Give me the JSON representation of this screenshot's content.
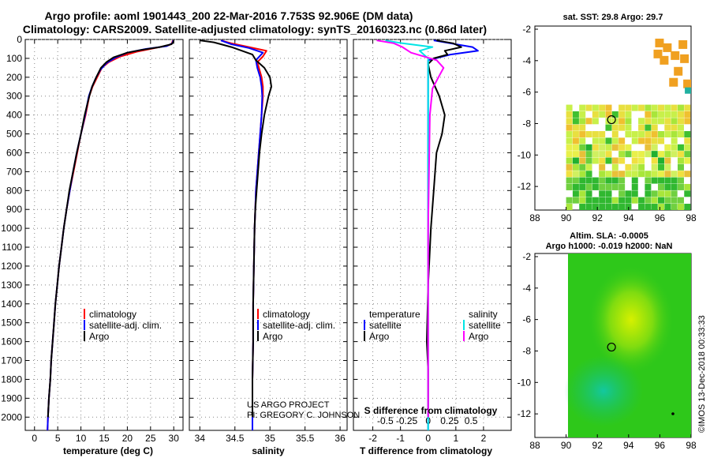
{
  "header": {
    "title_line1": "Argo profile: aoml 1901443_200 22-Mar-2016 7.753S 92.906E (DM data)",
    "title_line2": "Climatology: CARS2009. Satellite-adjusted climatology: synTS_20160323.nc (0.86d later)"
  },
  "credits": {
    "project": "US ARGO PROJECT",
    "pi": "PI: GREGORY C. JOHNSON",
    "stamp": "©IMOS 13-Dec-2018 00:33:33"
  },
  "colors": {
    "climatology": "#ff0000",
    "satellite": "#0000ff",
    "argo": "#000000",
    "sal_satellite": "#00e5e5",
    "sal_argo": "#ff00ff"
  },
  "chart_data": [
    {
      "id": "temperature",
      "type": "line",
      "xlabel": "temperature (deg C)",
      "xlim": [
        -2,
        32
      ],
      "xticks": [
        0,
        5,
        10,
        15,
        20,
        25,
        30
      ],
      "ylim": [
        2070,
        0
      ],
      "yticks": [
        0,
        100,
        200,
        300,
        400,
        500,
        600,
        700,
        800,
        900,
        1000,
        1100,
        1200,
        1300,
        1400,
        1500,
        1600,
        1700,
        1800,
        1900,
        2000
      ],
      "legend": [
        "climatology",
        "satellite-adj. clim.",
        "Argo"
      ],
      "series": [
        {
          "name": "climatology",
          "color": "#ff0000",
          "points": [
            [
              29.8,
              5
            ],
            [
              29.6,
              20
            ],
            [
              29,
              30
            ],
            [
              26,
              45
            ],
            [
              22,
              65
            ],
            [
              18.5,
              90
            ],
            [
              16,
              120
            ],
            [
              14.5,
              150
            ],
            [
              13.5,
              200
            ],
            [
              12.5,
              250
            ],
            [
              11.8,
              300
            ],
            [
              11,
              400
            ],
            [
              10,
              500
            ],
            [
              9.2,
              600
            ],
            [
              8.4,
              700
            ],
            [
              7.6,
              800
            ],
            [
              6.9,
              900
            ],
            [
              6.3,
              1000
            ],
            [
              5.8,
              1100
            ],
            [
              5.3,
              1200
            ],
            [
              4.9,
              1300
            ],
            [
              4.5,
              1400
            ],
            [
              4.2,
              1500
            ],
            [
              3.9,
              1600
            ],
            [
              3.6,
              1700
            ],
            [
              3.4,
              1800
            ],
            [
              3.1,
              1900
            ],
            [
              2.9,
              2000
            ],
            [
              2.8,
              2070
            ]
          ]
        },
        {
          "name": "satellite-adj. clim.",
          "color": "#0000ff",
          "points": [
            [
              29.9,
              5
            ],
            [
              29.7,
              20
            ],
            [
              28.5,
              35
            ],
            [
              24,
              50
            ],
            [
              20,
              70
            ],
            [
              17.5,
              95
            ],
            [
              15.5,
              125
            ],
            [
              14.2,
              160
            ],
            [
              13.3,
              200
            ],
            [
              12.4,
              250
            ],
            [
              11.7,
              300
            ],
            [
              10.9,
              400
            ],
            [
              10,
              500
            ],
            [
              9.1,
              600
            ],
            [
              8.3,
              700
            ],
            [
              7.6,
              800
            ],
            [
              6.9,
              900
            ],
            [
              6.3,
              1000
            ],
            [
              5.8,
              1100
            ],
            [
              5.3,
              1200
            ],
            [
              4.9,
              1300
            ],
            [
              4.5,
              1400
            ],
            [
              4.2,
              1500
            ],
            [
              3.9,
              1600
            ],
            [
              3.6,
              1700
            ],
            [
              3.4,
              1800
            ],
            [
              3.1,
              1900
            ],
            [
              2.9,
              2000
            ],
            [
              2.8,
              2070
            ]
          ]
        },
        {
          "name": "Argo",
          "color": "#000000",
          "points": [
            [
              30,
              5
            ],
            [
              29.9,
              15
            ],
            [
              29.5,
              25
            ],
            [
              27,
              40
            ],
            [
              23,
              55
            ],
            [
              20,
              70
            ],
            [
              17,
              95
            ],
            [
              15.5,
              120
            ],
            [
              14.3,
              150
            ],
            [
              13.3,
              200
            ],
            [
              12.4,
              250
            ],
            [
              11.8,
              300
            ],
            [
              10.8,
              400
            ],
            [
              10,
              500
            ],
            [
              9.1,
              600
            ],
            [
              8.3,
              700
            ],
            [
              7.5,
              800
            ],
            [
              6.9,
              900
            ],
            [
              6.3,
              1000
            ],
            [
              5.8,
              1100
            ],
            [
              5.3,
              1200
            ],
            [
              4.9,
              1300
            ],
            [
              4.5,
              1400
            ],
            [
              4.2,
              1500
            ],
            [
              3.9,
              1600
            ],
            [
              3.6,
              1700
            ],
            [
              3.4,
              1800
            ],
            [
              3.1,
              1900
            ],
            [
              2.9,
              2000
            ]
          ]
        }
      ]
    },
    {
      "id": "salinity",
      "type": "line",
      "xlabel": "salinity",
      "xlim": [
        33.85,
        36.1
      ],
      "xticks": [
        34,
        34.5,
        35,
        35.5,
        36
      ],
      "ylim": [
        2070,
        0
      ],
      "legend": [
        "climatology",
        "satellite-adj. clim.",
        "Argo"
      ],
      "series": [
        {
          "name": "climatology",
          "color": "#ff0000",
          "points": [
            [
              34.3,
              5
            ],
            [
              34.45,
              20
            ],
            [
              34.7,
              40
            ],
            [
              34.95,
              60
            ],
            [
              34.9,
              90
            ],
            [
              34.82,
              120
            ],
            [
              34.85,
              160
            ],
            [
              34.88,
              200
            ],
            [
              34.9,
              250
            ],
            [
              34.9,
              300
            ],
            [
              34.88,
              400
            ],
            [
              34.86,
              500
            ],
            [
              34.84,
              600
            ],
            [
              34.82,
              700
            ],
            [
              34.8,
              800
            ],
            [
              34.79,
              900
            ],
            [
              34.78,
              1000
            ],
            [
              34.77,
              1200
            ],
            [
              34.76,
              1400
            ],
            [
              34.76,
              1600
            ],
            [
              34.75,
              1800
            ],
            [
              34.75,
              2070
            ]
          ]
        },
        {
          "name": "satellite-adj. clim.",
          "color": "#0000ff",
          "points": [
            [
              34.3,
              5
            ],
            [
              34.45,
              25
            ],
            [
              34.7,
              45
            ],
            [
              34.9,
              70
            ],
            [
              34.8,
              110
            ],
            [
              34.82,
              150
            ],
            [
              34.86,
              200
            ],
            [
              34.88,
              250
            ],
            [
              34.89,
              300
            ],
            [
              34.88,
              400
            ],
            [
              34.86,
              500
            ],
            [
              34.84,
              600
            ],
            [
              34.82,
              700
            ],
            [
              34.8,
              800
            ],
            [
              34.79,
              900
            ],
            [
              34.78,
              1000
            ],
            [
              34.77,
              1200
            ],
            [
              34.76,
              1400
            ],
            [
              34.76,
              1600
            ],
            [
              34.75,
              1800
            ],
            [
              34.75,
              2070
            ]
          ]
        },
        {
          "name": "Argo",
          "color": "#000000",
          "points": [
            [
              34.0,
              5
            ],
            [
              34.2,
              15
            ],
            [
              34.3,
              25
            ],
            [
              34.45,
              40
            ],
            [
              34.6,
              60
            ],
            [
              34.75,
              80
            ],
            [
              34.8,
              110
            ],
            [
              34.92,
              150
            ],
            [
              35.0,
              200
            ],
            [
              35.02,
              250
            ],
            [
              34.98,
              300
            ],
            [
              34.92,
              400
            ],
            [
              34.88,
              500
            ],
            [
              34.85,
              600
            ],
            [
              34.83,
              700
            ],
            [
              34.81,
              800
            ],
            [
              34.79,
              900
            ],
            [
              34.78,
              1000
            ],
            [
              34.77,
              1200
            ],
            [
              34.76,
              1400
            ],
            [
              34.76,
              1600
            ],
            [
              34.75,
              1800
            ],
            [
              34.75,
              2000
            ]
          ]
        }
      ]
    },
    {
      "id": "difference",
      "type": "line",
      "xlabel": "T difference from climatology",
      "xlabel_top": "S difference from climatology",
      "xlim": [
        -2.7,
        3.0
      ],
      "xticks": [
        -2,
        -1,
        0,
        1,
        2
      ],
      "sal_xticks": [
        -0.5,
        -0.25,
        0,
        0.25,
        0.5
      ],
      "ylim": [
        2070,
        0
      ],
      "legend_left_title": "temperature",
      "legend_right_title": "salinity",
      "legend_left": [
        "satellite",
        "Argo"
      ],
      "legend_right": [
        "satellite",
        "Argo"
      ],
      "series": [
        {
          "name": "T satellite",
          "color": "#0000ff",
          "points": [
            [
              0.2,
              5
            ],
            [
              0.8,
              20
            ],
            [
              1.6,
              40
            ],
            [
              1.8,
              60
            ],
            [
              0.8,
              80
            ],
            [
              0,
              110
            ],
            [
              0,
              200
            ],
            [
              0,
              400
            ],
            [
              0,
              800
            ],
            [
              0,
              1200
            ],
            [
              0,
              1600
            ],
            [
              0,
              2070
            ]
          ]
        },
        {
          "name": "T Argo",
          "color": "#000000",
          "points": [
            [
              0.3,
              5
            ],
            [
              0.9,
              20
            ],
            [
              1.2,
              40
            ],
            [
              0.6,
              60
            ],
            [
              0.7,
              80
            ],
            [
              0.2,
              100
            ],
            [
              0,
              130
            ],
            [
              0.1,
              200
            ],
            [
              0.4,
              300
            ],
            [
              0.6,
              400
            ],
            [
              0.5,
              500
            ],
            [
              0.3,
              600
            ],
            [
              0.2,
              800
            ],
            [
              0.1,
              1000
            ],
            [
              0,
              1300
            ],
            [
              -0.05,
              1600
            ],
            [
              0,
              1750
            ],
            [
              0,
              2000
            ]
          ]
        },
        {
          "name": "S satellite",
          "color": "#00e5e5",
          "points": [
            [
              -0.5,
              5
            ],
            [
              -0.3,
              20
            ],
            [
              0.05,
              40
            ],
            [
              -0.1,
              60
            ],
            [
              -0.05,
              80
            ],
            [
              0,
              100
            ],
            [
              0,
              300
            ],
            [
              0,
              600
            ],
            [
              0,
              1000
            ],
            [
              0,
              1500
            ],
            [
              0,
              2070
            ]
          ]
        },
        {
          "name": "S Argo",
          "color": "#ff00ff",
          "points": [
            [
              -0.6,
              5
            ],
            [
              -0.4,
              20
            ],
            [
              -0.3,
              40
            ],
            [
              -0.2,
              70
            ],
            [
              0.1,
              110
            ],
            [
              0.18,
              150
            ],
            [
              0.12,
              200
            ],
            [
              0.05,
              260
            ],
            [
              0.02,
              400
            ],
            [
              0.01,
              700
            ],
            [
              0,
              1000
            ],
            [
              0,
              1400
            ],
            [
              0,
              1800
            ],
            [
              0,
              2000
            ]
          ]
        }
      ]
    },
    {
      "id": "sst_map",
      "type": "heatmap",
      "title": "sat. SST: 29.8 Argo: 29.7",
      "xlim": [
        88,
        98
      ],
      "ylim": [
        -13.5,
        -1.8
      ],
      "xticks": [
        88,
        90,
        92,
        94,
        96,
        98
      ],
      "yticks": [
        -2,
        -4,
        -6,
        -8,
        -10,
        -12
      ],
      "argo_position": [
        92.906,
        -7.753
      ]
    },
    {
      "id": "sla_map",
      "type": "heatmap",
      "title_line1": "Altim. SLA: -0.0005",
      "title_line2": "Argo h1000: -0.019 h2000: NaN",
      "xlim": [
        88,
        98
      ],
      "ylim": [
        -13.5,
        -1.8
      ],
      "xticks": [
        88,
        90,
        92,
        94,
        96,
        98
      ],
      "yticks": [
        -2,
        -4,
        -6,
        -8,
        -10,
        -12
      ],
      "argo_position": [
        92.906,
        -7.753
      ]
    }
  ]
}
